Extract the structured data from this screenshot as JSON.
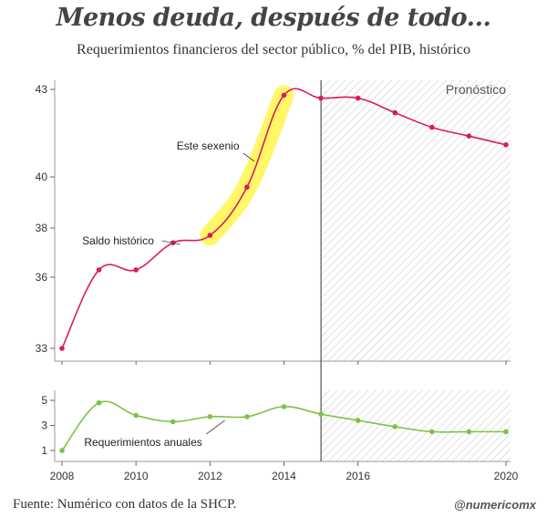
{
  "title": "Menos deuda, después de todo...",
  "subtitle": "Requerimientos financieros del sector público, % del PIB, histórico",
  "footer": {
    "source": "Fuente: Numérico con datos de la SHCP.",
    "handle": "@numericomx"
  },
  "colors": {
    "top_series": "#d81b60",
    "bottom_series": "#7cc242",
    "highlight": "#fff200",
    "forecast_hatch": "#888888",
    "forecast_line": "#333333"
  },
  "chart_data": [
    {
      "type": "line",
      "panel": "top",
      "x": [
        2008,
        2009,
        2010,
        2011,
        2012,
        2013,
        2014,
        2015,
        2016,
        2017,
        2018,
        2019,
        2020
      ],
      "series": [
        {
          "values": [
            33.0,
            36.3,
            36.3,
            37.4,
            37.7,
            39.6,
            42.8,
            42.7,
            42.7,
            42.2,
            41.7,
            41.4,
            41.1
          ]
        }
      ],
      "ylim": [
        33,
        43
      ],
      "yticks": [
        "33",
        "36",
        "38",
        "40",
        "43"
      ],
      "ytick_values": [
        33,
        36,
        38,
        40,
        43
      ],
      "forecast_from": 2015,
      "forecast_label": "Pronóstico",
      "highlight_range": [
        2012,
        2014
      ],
      "annotations": [
        {
          "text": "Saldo histórico",
          "x": 2011,
          "y": 37.3
        },
        {
          "text": "Este sexenio",
          "x": 2013,
          "y": 40.8
        }
      ],
      "grid": false,
      "legend": "none"
    },
    {
      "type": "line",
      "panel": "bottom",
      "x": [
        2008,
        2009,
        2010,
        2011,
        2012,
        2013,
        2014,
        2015,
        2016,
        2017,
        2018,
        2019,
        2020
      ],
      "series": [
        {
          "values": [
            1.0,
            4.8,
            3.8,
            3.3,
            3.7,
            3.7,
            4.5,
            3.9,
            3.4,
            2.9,
            2.5,
            2.5,
            2.5
          ]
        }
      ],
      "ylim": [
        0,
        6
      ],
      "yticks": [
        "1",
        "3",
        "5"
      ],
      "ytick_values": [
        1,
        3,
        5
      ],
      "xticks": [
        "2008",
        "2010",
        "2012",
        "2014",
        "2016",
        "2020"
      ],
      "xtick_values": [
        2008,
        2010,
        2012,
        2014,
        2016,
        2020
      ],
      "forecast_from": 2015,
      "annotations": [
        {
          "text": "Requerimientos anuales",
          "x": 2012,
          "y": 3.5
        }
      ],
      "grid": false,
      "legend": "none"
    }
  ]
}
